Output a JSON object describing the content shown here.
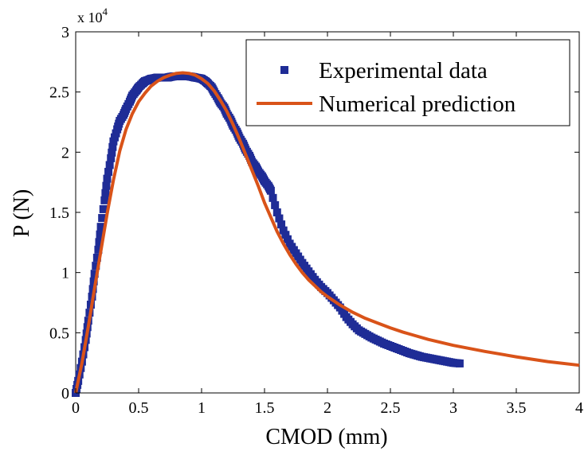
{
  "chart_data": {
    "type": "scatter",
    "xlabel": "CMOD (mm)",
    "ylabel": "P (N)",
    "xlim": [
      0,
      4
    ],
    "ylim": [
      0,
      30000
    ],
    "x_ticks": [
      "0",
      "0.5",
      "1",
      "1.5",
      "2",
      "2.5",
      "3",
      "3.5",
      "4"
    ],
    "y_ticks": [
      "0",
      "0.5",
      "1",
      "1.5",
      "2",
      "2.5",
      "3"
    ],
    "y_multiplier": {
      "base": "x 10",
      "exponent": "4"
    },
    "grid": false,
    "legend": "top-right",
    "colors": {
      "experimental": "#1f2c96",
      "numerical": "#d95319"
    },
    "series": [
      {
        "name": "Experimental data",
        "style": "square-markers",
        "x": [
          0.0,
          0.02,
          0.05,
          0.08,
          0.1,
          0.13,
          0.15,
          0.18,
          0.2,
          0.23,
          0.25,
          0.28,
          0.3,
          0.33,
          0.35,
          0.38,
          0.4,
          0.43,
          0.45,
          0.48,
          0.5,
          0.53,
          0.55,
          0.58,
          0.6,
          0.63,
          0.65,
          0.68,
          0.7,
          0.73,
          0.75,
          0.78,
          0.8,
          0.83,
          0.85,
          0.88,
          0.9,
          0.93,
          0.95,
          0.98,
          1.0,
          1.03,
          1.05,
          1.08,
          1.1,
          1.13,
          1.15,
          1.18,
          1.2,
          1.23,
          1.25,
          1.28,
          1.3,
          1.33,
          1.35,
          1.38,
          1.4,
          1.43,
          1.45,
          1.48,
          1.5,
          1.53,
          1.55,
          1.6,
          1.65,
          1.7,
          1.75,
          1.8,
          1.85,
          1.9,
          1.95,
          2.0,
          2.05,
          2.1,
          2.15,
          2.2,
          2.25,
          2.3,
          2.35,
          2.4,
          2.45,
          2.5,
          2.55,
          2.6,
          2.65,
          2.7,
          2.75,
          2.8,
          2.85,
          2.9,
          2.95,
          3.0,
          3.05
        ],
        "y": [
          0,
          1000,
          2600,
          4400,
          6000,
          8000,
          9900,
          11900,
          13800,
          16000,
          17800,
          19500,
          20900,
          21900,
          22600,
          23100,
          23600,
          24200,
          24700,
          25100,
          25400,
          25700,
          25900,
          26000,
          26100,
          26150,
          26200,
          26200,
          26200,
          26200,
          26250,
          26300,
          26300,
          26300,
          26300,
          26300,
          26300,
          26250,
          26200,
          26150,
          26100,
          25900,
          25700,
          25400,
          25000,
          24500,
          24100,
          23700,
          23200,
          22700,
          22200,
          21700,
          21200,
          20700,
          20200,
          19700,
          19200,
          18800,
          18400,
          18000,
          17600,
          17200,
          16800,
          15000,
          13500,
          12400,
          11600,
          10800,
          10100,
          9400,
          8800,
          8300,
          7700,
          7100,
          6300,
          5700,
          5200,
          4900,
          4600,
          4350,
          4100,
          3900,
          3700,
          3500,
          3300,
          3150,
          3000,
          2900,
          2800,
          2700,
          2600,
          2500,
          2450
        ]
      },
      {
        "name": "Numerical prediction",
        "style": "line",
        "x": [
          0.0,
          0.05,
          0.1,
          0.15,
          0.2,
          0.25,
          0.3,
          0.35,
          0.4,
          0.45,
          0.5,
          0.55,
          0.6,
          0.65,
          0.7,
          0.75,
          0.8,
          0.85,
          0.9,
          0.95,
          1.0,
          1.05,
          1.1,
          1.15,
          1.2,
          1.25,
          1.3,
          1.35,
          1.4,
          1.45,
          1.5,
          1.55,
          1.6,
          1.65,
          1.7,
          1.75,
          1.8,
          1.85,
          1.9,
          1.95,
          2.0,
          2.1,
          2.2,
          2.3,
          2.4,
          2.5,
          2.6,
          2.7,
          2.8,
          2.9,
          3.0,
          3.25,
          3.5,
          3.75,
          4.0
        ],
        "y": [
          0,
          2500,
          5500,
          8700,
          11800,
          14900,
          17700,
          20100,
          21900,
          23200,
          24200,
          24900,
          25500,
          25900,
          26200,
          26400,
          26550,
          26600,
          26550,
          26400,
          26100,
          25700,
          25100,
          24300,
          23400,
          22300,
          21100,
          19800,
          18500,
          17200,
          15800,
          14600,
          13400,
          12400,
          11500,
          10700,
          10000,
          9400,
          8900,
          8400,
          8000,
          7300,
          6700,
          6200,
          5800,
          5400,
          5050,
          4750,
          4450,
          4200,
          3950,
          3450,
          3000,
          2600,
          2300
        ]
      }
    ]
  }
}
